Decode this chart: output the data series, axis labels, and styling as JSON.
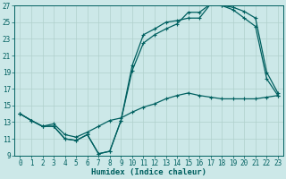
{
  "xlabel": "Humidex (Indice chaleur)",
  "background_color": "#cce8e8",
  "grid_color": "#b0d0cc",
  "line_color": "#006060",
  "xlim": [
    -0.5,
    23.5
  ],
  "ylim": [
    9,
    27
  ],
  "xticks": [
    0,
    1,
    2,
    3,
    4,
    5,
    6,
    7,
    8,
    9,
    10,
    11,
    12,
    13,
    14,
    15,
    16,
    17,
    18,
    19,
    20,
    21,
    22,
    23
  ],
  "yticks": [
    9,
    11,
    13,
    15,
    17,
    19,
    21,
    23,
    25,
    27
  ],
  "line1_x": [
    0,
    1,
    2,
    3,
    4,
    5,
    6,
    7,
    8,
    9,
    10,
    11,
    12,
    13,
    14,
    15,
    16,
    17,
    18,
    19,
    20,
    21,
    22,
    23
  ],
  "line1_y": [
    14.0,
    13.2,
    12.5,
    12.5,
    11.0,
    10.8,
    11.5,
    9.2,
    9.5,
    13.2,
    19.2,
    22.5,
    23.5,
    24.2,
    24.8,
    26.2,
    26.2,
    27.2,
    27.0,
    26.5,
    25.5,
    24.5,
    18.2,
    16.2
  ],
  "line2_x": [
    0,
    1,
    2,
    3,
    4,
    5,
    6,
    7,
    8,
    9,
    10,
    11,
    12,
    13,
    14,
    15,
    16,
    17,
    18,
    19,
    20,
    21,
    22,
    23
  ],
  "line2_y": [
    14.0,
    13.2,
    12.5,
    12.5,
    11.0,
    10.8,
    11.5,
    9.2,
    9.5,
    13.2,
    19.8,
    23.5,
    24.2,
    25.0,
    25.2,
    25.5,
    25.5,
    27.2,
    27.0,
    26.8,
    26.3,
    25.5,
    19.0,
    16.5
  ],
  "line3_x": [
    0,
    1,
    2,
    3,
    4,
    5,
    6,
    7,
    8,
    9,
    10,
    11,
    12,
    13,
    14,
    15,
    16,
    17,
    18,
    19,
    20,
    21,
    22,
    23
  ],
  "line3_y": [
    14.0,
    13.2,
    12.5,
    12.8,
    11.5,
    11.2,
    11.8,
    12.5,
    13.2,
    13.5,
    14.2,
    14.8,
    15.2,
    15.8,
    16.2,
    16.5,
    16.2,
    16.0,
    15.8,
    15.8,
    15.8,
    15.8,
    16.0,
    16.2
  ],
  "markersize": 2.0,
  "linewidth": 0.9
}
